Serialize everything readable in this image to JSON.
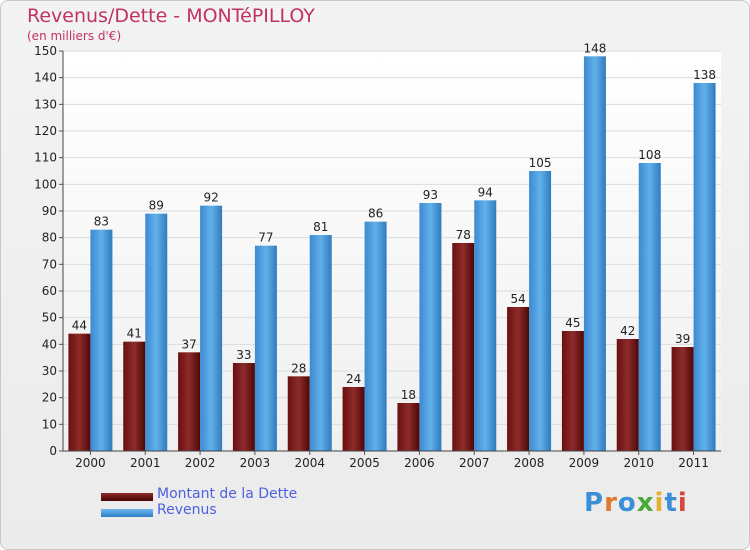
{
  "header": {
    "title": "Revenus/Dette - MONTéPILLOY",
    "subtitle": "(en milliers d'€)"
  },
  "legend": {
    "items": [
      {
        "label": "Montant de la Dette",
        "color": "#6b0d0d"
      },
      {
        "label": "Revenus",
        "color": "#4a9de0"
      }
    ]
  },
  "brand": {
    "letters": [
      {
        "ch": "P",
        "color": "#3a8fd6"
      },
      {
        "ch": "r",
        "color": "#e07a2e"
      },
      {
        "ch": "o",
        "color": "#3a8fd6"
      },
      {
        "ch": "x",
        "color": "#49a83a"
      },
      {
        "ch": "i",
        "color": "#e0b02e"
      },
      {
        "ch": "t",
        "color": "#3a8fd6"
      },
      {
        "ch": "i",
        "color": "#d8453a"
      }
    ]
  },
  "chart_data": {
    "type": "bar",
    "categories": [
      "2000",
      "2001",
      "2002",
      "2003",
      "2004",
      "2005",
      "2006",
      "2007",
      "2008",
      "2009",
      "2010",
      "2011"
    ],
    "series": [
      {
        "name": "Montant de la Dette",
        "color": "#6b0d0d",
        "values": [
          44,
          41,
          37,
          33,
          28,
          24,
          18,
          78,
          54,
          45,
          42,
          39
        ]
      },
      {
        "name": "Revenus",
        "color": "#4a9de0",
        "values": [
          83,
          89,
          92,
          77,
          81,
          86,
          93,
          94,
          105,
          148,
          108,
          138
        ]
      }
    ],
    "ylim": [
      0,
      150
    ],
    "yticks": [
      0,
      10,
      20,
      30,
      40,
      50,
      60,
      70,
      80,
      90,
      100,
      110,
      120,
      130,
      140,
      150
    ],
    "grid": true,
    "legend_position": "bottom-left"
  }
}
